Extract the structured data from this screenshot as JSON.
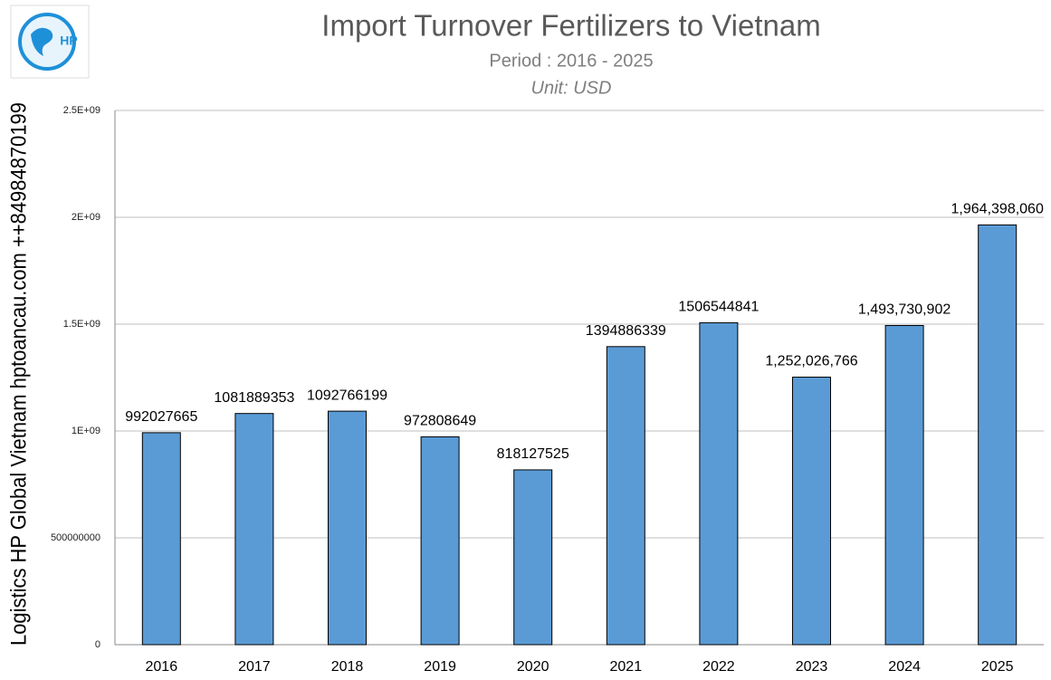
{
  "logo": {
    "text": "HP"
  },
  "chart_data": {
    "type": "bar",
    "title": "Import Turnover Fertilizers to Vietnam",
    "subtitle": "Period : 2016 - 2025",
    "unit": "Unit: USD",
    "y_label": "Logistics HP Global Vietnam hptoancau.com ++84984870199",
    "categories": [
      "2016",
      "2017",
      "2018",
      "2019",
      "2020",
      "2021",
      "2022",
      "2023",
      "2024",
      "2025"
    ],
    "values": [
      992027665,
      1081889353,
      1092766199,
      972808649,
      818127525,
      1394886339,
      1506544841,
      1252026766,
      1493730902,
      1964398060
    ],
    "value_labels": [
      "992027665",
      "1081889353",
      "1092766199",
      "972808649",
      "818127525",
      "1394886339",
      "1506544841",
      "1,252,026,766",
      "1,493,730,902",
      "1,964,398,060"
    ],
    "color": "#5b9bd5",
    "ylim": [
      0,
      2500000000
    ],
    "yticks": [
      0,
      500000000,
      {
        "value": 1000000000,
        "label": "1E+09"
      },
      {
        "value": 1500000000,
        "label": "1.5E+09"
      },
      {
        "value": 2000000000,
        "label": "2E+09"
      },
      {
        "value": 2500000000,
        "label": "2.5E+09"
      }
    ],
    "grid": true
  }
}
